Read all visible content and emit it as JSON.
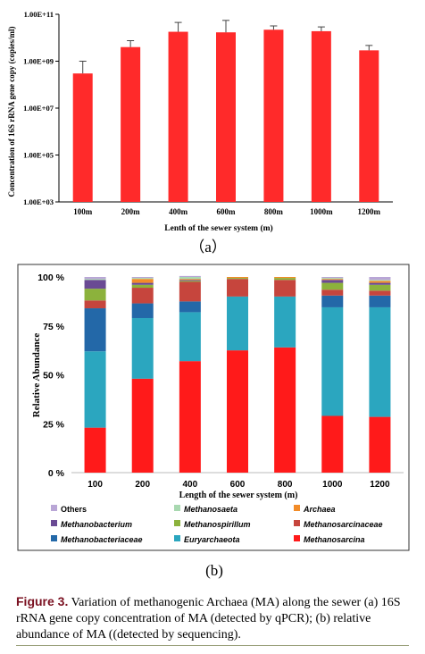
{
  "panel_a_label": "（a）",
  "panel_b_label": "(b)",
  "caption": {
    "label": "Figure 3.",
    "text": " Variation of methanogenic Archaea (MA) along the sewer (a) 16S rRNA gene copy concentration of MA (detected by qPCR); (b) relative abundance of MA ((detected by sequencing)."
  },
  "chart_data": [
    {
      "type": "bar",
      "title": "",
      "xlabel": "Lenth of the sewer system (m)",
      "ylabel": "Concentration of 16S rRNA gene copy (copies/ml)",
      "y_scale": "log",
      "ylim": [
        1000,
        100000000000
      ],
      "y_ticks": [
        "1.00E+03",
        "1.00E+05",
        "1.00E+07",
        "1.00E+09",
        "1.00E+11"
      ],
      "y_tick_values": [
        1000,
        100000,
        10000000,
        1000000000,
        100000000000
      ],
      "categories": [
        "100m",
        "200m",
        "400m",
        "600m",
        "800m",
        "1000m",
        "1200m"
      ],
      "values": [
        300000000,
        4000000000,
        18000000000,
        17000000000,
        22000000000,
        19000000000,
        2900000000
      ],
      "error_upper": [
        1000000000,
        7500000000,
        45000000000,
        55000000000,
        32000000000,
        29000000000,
        4700000000
      ],
      "color": "#ff2a2a"
    },
    {
      "type": "bar",
      "stacked": true,
      "title": "",
      "xlabel": "Length of the sewer system (m)",
      "ylabel": "Relative Abundance",
      "ylim": [
        0,
        100
      ],
      "y_ticks": [
        "0 %",
        "25 %",
        "50 %",
        "75 %",
        "100 %"
      ],
      "y_tick_values": [
        0,
        25,
        50,
        75,
        100
      ],
      "categories": [
        "100",
        "200",
        "400",
        "600",
        "800",
        "1000",
        "1200"
      ],
      "series": [
        {
          "name": "Methanosarcina",
          "color": "#ff1a1a",
          "values": [
            23,
            48,
            57,
            62.5,
            64,
            29,
            28.5
          ]
        },
        {
          "name": "Euryarchaeota",
          "color": "#2ba6bf",
          "values": [
            39,
            31,
            25,
            27.5,
            26,
            55.5,
            56
          ]
        },
        {
          "name": "Methanobacteriaceae",
          "color": "#2368a8",
          "values": [
            22,
            7.5,
            5.5,
            0,
            0,
            6,
            6
          ]
        },
        {
          "name": "Methanosarcinaceae",
          "color": "#c6453d",
          "values": [
            4,
            8,
            10,
            9,
            8.5,
            3,
            2.5
          ]
        },
        {
          "name": "Methanospirillum",
          "color": "#8cb23c",
          "values": [
            6,
            1.5,
            0.5,
            0.5,
            1,
            3.5,
            3
          ]
        },
        {
          "name": "Methanobacterium",
          "color": "#6a4a94",
          "values": [
            4.5,
            1,
            0.5,
            0,
            0,
            1.5,
            1
          ]
        },
        {
          "name": "Archaea",
          "color": "#f28c28",
          "values": [
            0,
            2,
            0.5,
            0.5,
            0.5,
            0.5,
            1
          ]
        },
        {
          "name": "Methanosaeta",
          "color": "#a8d8b0",
          "values": [
            0.5,
            0.5,
            1,
            0,
            0,
            0.5,
            0.5
          ]
        },
        {
          "name": "Others",
          "color": "#b9a6d6",
          "values": [
            1,
            0.5,
            0.5,
            0,
            0,
            0.5,
            1.5
          ]
        }
      ],
      "legend": {
        "placement": "bottom",
        "order": [
          "Others",
          "Methanosaeta",
          "Archaea",
          "Methanobacterium",
          "Methanospirillum",
          "Methanosarcinaceae",
          "Methanobacteriaceae",
          "Euryarchaeota",
          "Methanosarcina"
        ]
      }
    }
  ]
}
